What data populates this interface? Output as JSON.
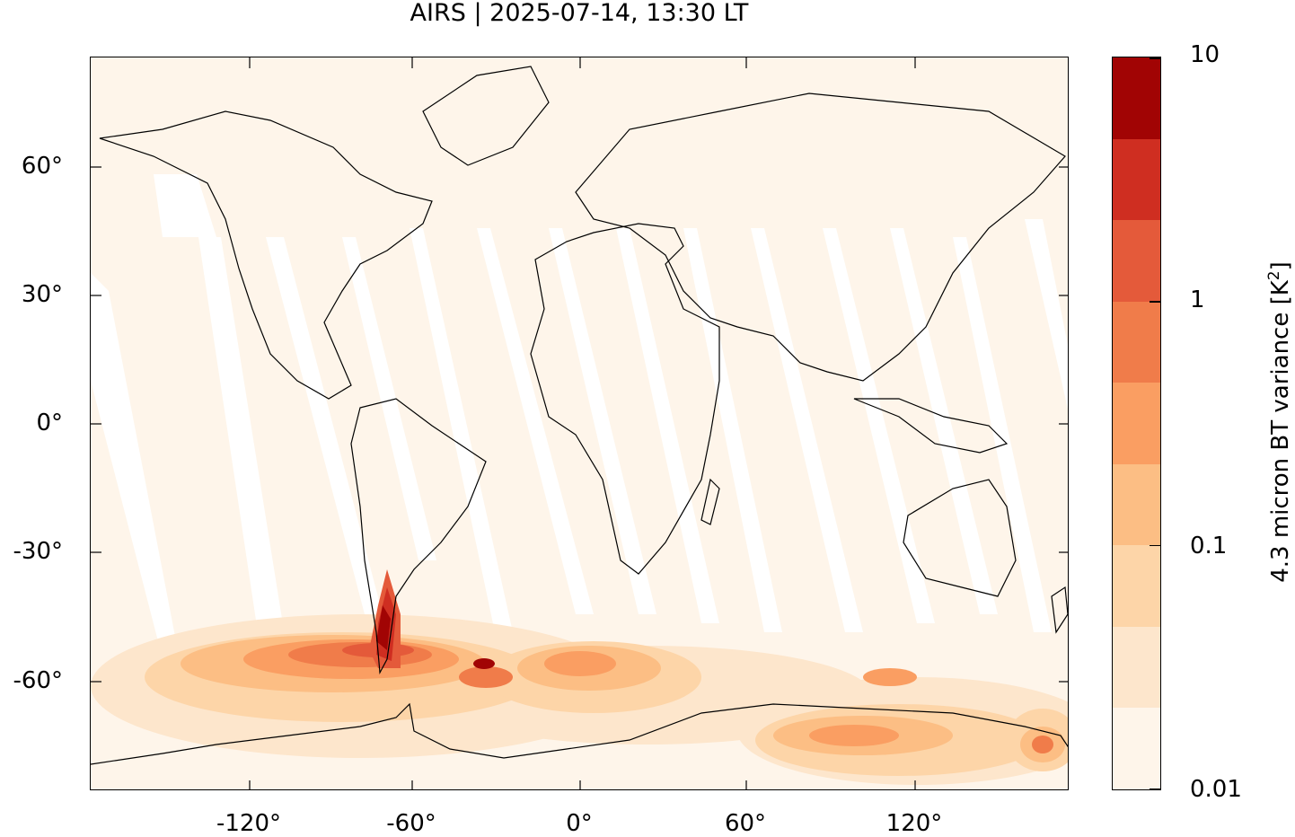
{
  "title": "AIRS | 2025-07-14, 13:30 LT",
  "axes": {
    "lat_ticks": [
      "60°",
      "30°",
      "0°",
      "-30°",
      "-60°"
    ],
    "lon_ticks": [
      "-120°",
      "-60°",
      "0°",
      "60°",
      "120°"
    ]
  },
  "colorbar": {
    "label_main": "4.3 micron BT variance [K",
    "label_sup": "2",
    "label_end": "]",
    "tick_labels": [
      "10",
      "1",
      "0.1",
      "0.01"
    ],
    "scale": "log",
    "range": [
      0.01,
      10
    ],
    "colors": [
      "#fef5ea",
      "#fde6cc",
      "#fdd5a8",
      "#fcbe84",
      "#fa9e62",
      "#f07c4a",
      "#e45a3a",
      "#cf2e21",
      "#a10404"
    ]
  },
  "map": {
    "projection": "equirectangular",
    "lon_range": [
      -180,
      180
    ],
    "lat_range": [
      -90,
      90
    ],
    "background_color": "#fef5ea",
    "gap_color": "#ffffff",
    "coastline_color": "#000000"
  }
}
